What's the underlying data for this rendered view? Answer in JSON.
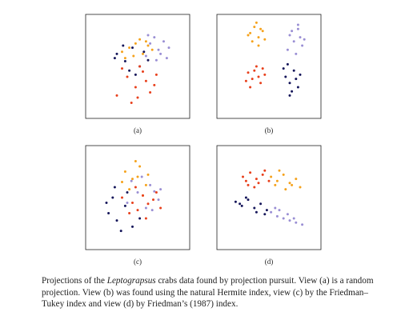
{
  "chart_data": [
    {
      "type": "scatter",
      "label": "(a)",
      "xlim": [
        0,
        100
      ],
      "ylim": [
        0,
        100
      ],
      "series": [
        {
          "color": "#f5a21c",
          "x": [
            42,
            48,
            55,
            60,
            38,
            52,
            64,
            46,
            58,
            35
          ],
          "y": [
            68,
            72,
            62,
            70,
            58,
            76,
            66,
            60,
            74,
            64
          ]
        },
        {
          "color": "#9a8fd4",
          "x": [
            62,
            70,
            75,
            58,
            80,
            66,
            72,
            68,
            78,
            60
          ],
          "y": [
            72,
            66,
            74,
            60,
            68,
            78,
            62,
            56,
            58,
            80
          ]
        },
        {
          "color": "#15165a",
          "x": [
            30,
            38,
            45,
            52,
            28,
            42,
            56,
            36,
            48,
            60
          ],
          "y": [
            62,
            55,
            68,
            50,
            58,
            46,
            64,
            70,
            42,
            56
          ]
        },
        {
          "color": "#e8401c",
          "x": [
            40,
            48,
            55,
            62,
            35,
            50,
            58,
            68,
            44,
            52,
            66,
            30
          ],
          "y": [
            40,
            30,
            45,
            25,
            48,
            20,
            36,
            42,
            15,
            50,
            32,
            22
          ]
        }
      ]
    },
    {
      "type": "scatter",
      "label": "(b)",
      "xlim": [
        0,
        100
      ],
      "ylim": [
        0,
        100
      ],
      "series": [
        {
          "color": "#f5a21c",
          "x": [
            32,
            36,
            40,
            44,
            34,
            38,
            42,
            46,
            30,
            40
          ],
          "y": [
            82,
            88,
            78,
            84,
            74,
            92,
            86,
            76,
            80,
            70
          ]
        },
        {
          "color": "#9a8fd4",
          "x": [
            70,
            74,
            78,
            82,
            68,
            76,
            80,
            72,
            84,
            78
          ],
          "y": [
            80,
            74,
            86,
            70,
            66,
            62,
            78,
            84,
            76,
            90
          ]
        },
        {
          "color": "#15165a",
          "x": [
            66,
            70,
            74,
            78,
            64,
            72,
            76,
            68,
            80,
            70
          ],
          "y": [
            40,
            34,
            46,
            30,
            48,
            26,
            38,
            52,
            42,
            22
          ]
        },
        {
          "color": "#e8401c",
          "x": [
            30,
            34,
            38,
            42,
            46,
            32,
            36,
            40,
            44,
            28
          ],
          "y": [
            44,
            38,
            50,
            34,
            42,
            30,
            46,
            40,
            48,
            36
          ]
        }
      ]
    },
    {
      "type": "scatter",
      "label": "(c)",
      "xlim": [
        0,
        100
      ],
      "ylim": [
        0,
        100
      ],
      "series": [
        {
          "color": "#f5a21c",
          "x": [
            38,
            45,
            52,
            58,
            42,
            60,
            48,
            35,
            55,
            50
          ],
          "y": [
            75,
            68,
            80,
            62,
            58,
            72,
            85,
            65,
            52,
            70
          ]
        },
        {
          "color": "#9a8fd4",
          "x": [
            50,
            62,
            70,
            44,
            58,
            66,
            54,
            72,
            40,
            64
          ],
          "y": [
            55,
            62,
            48,
            66,
            40,
            56,
            70,
            58,
            45,
            38
          ]
        },
        {
          "color": "#15165a",
          "x": [
            22,
            30,
            38,
            26,
            45,
            34,
            52,
            20,
            40,
            28
          ],
          "y": [
            35,
            28,
            42,
            50,
            22,
            18,
            30,
            45,
            55,
            60
          ]
        },
        {
          "color": "#e8401c",
          "x": [
            35,
            45,
            55,
            65,
            72,
            50,
            60,
            42,
            58,
            68,
            48
          ],
          "y": [
            50,
            45,
            52,
            48,
            40,
            38,
            44,
            35,
            30,
            55,
            60
          ]
        }
      ]
    },
    {
      "type": "scatter",
      "label": "(d)",
      "xlim": [
        0,
        100
      ],
      "ylim": [
        0,
        100
      ],
      "series": [
        {
          "color": "#e8401c",
          "x": [
            25,
            32,
            38,
            44,
            50,
            30,
            40,
            46,
            36,
            28
          ],
          "y": [
            70,
            74,
            68,
            72,
            66,
            62,
            64,
            76,
            60,
            66
          ]
        },
        {
          "color": "#f5a21c",
          "x": [
            52,
            58,
            64,
            70,
            76,
            80,
            56,
            66,
            72,
            60
          ],
          "y": [
            70,
            66,
            72,
            64,
            68,
            60,
            62,
            58,
            62,
            76
          ]
        },
        {
          "color": "#15165a",
          "x": [
            18,
            24,
            30,
            36,
            42,
            48,
            28,
            38,
            22,
            46
          ],
          "y": [
            46,
            42,
            48,
            40,
            44,
            38,
            50,
            36,
            44,
            34
          ]
        },
        {
          "color": "#9a8fd4",
          "x": [
            52,
            58,
            64,
            70,
            76,
            82,
            60,
            68,
            74,
            56
          ],
          "y": [
            36,
            32,
            30,
            28,
            26,
            24,
            38,
            34,
            30,
            40
          ]
        }
      ]
    }
  ],
  "caption": {
    "lead": "Projections of the ",
    "species": "Leptograpsus",
    "rest": " crabs data found by projection pursuit. View (a) is a random projection. View (b) was found using the natural Hermite index, view (c) by the Friedman–Tukey index and view (d) by Friedman’s (1987) index."
  }
}
